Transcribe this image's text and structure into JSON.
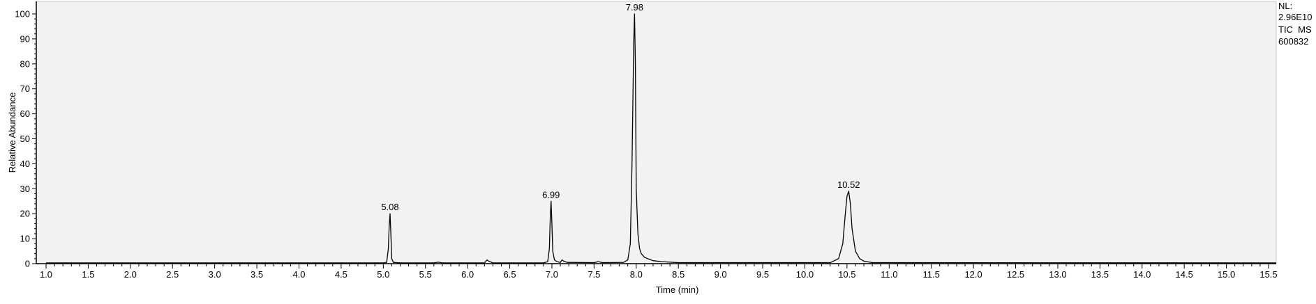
{
  "chart_data": {
    "type": "line",
    "xlabel": "Time (min)",
    "ylabel": "Relative Abundance",
    "xlim": [
      1.0,
      15.6
    ],
    "ylim": [
      0,
      100
    ],
    "x_ticks": [
      "1.0",
      "1.5",
      "2.0",
      "2.5",
      "3.0",
      "3.5",
      "4.0",
      "4.5",
      "5.0",
      "5.5",
      "6.0",
      "6.5",
      "7.0",
      "7.5",
      "8.0",
      "8.5",
      "9.0",
      "9.5",
      "10.0",
      "10.5",
      "11.0",
      "11.5",
      "12.0",
      "12.5",
      "13.0",
      "13.5",
      "14.0",
      "14.5",
      "15.0",
      "15.5"
    ],
    "y_ticks": [
      "0",
      "10",
      "20",
      "30",
      "40",
      "50",
      "60",
      "70",
      "80",
      "90",
      "100"
    ],
    "info": [
      "NL:",
      "2.96E10",
      "TIC  MS",
      "600832"
    ],
    "colors": {
      "plot_background": "#f2f2f2",
      "trace": "#000000",
      "axis": "#000000"
    },
    "peak_labels": [
      {
        "text": "5.08",
        "x": 5.08,
        "y": 20
      },
      {
        "text": "6.99",
        "x": 6.99,
        "y": 25
      },
      {
        "text": "7.98",
        "x": 7.98,
        "y": 100
      },
      {
        "text": "10.52",
        "x": 10.52,
        "y": 29
      }
    ],
    "series": [
      {
        "x": [
          1.0,
          5.0,
          5.04,
          5.06,
          5.07,
          5.08,
          5.09,
          5.1,
          5.12,
          5.2,
          5.6,
          5.65,
          5.7,
          6.2,
          6.23,
          6.25,
          6.28,
          6.3,
          6.9,
          6.95,
          6.97,
          6.98,
          6.99,
          7.0,
          7.01,
          7.03,
          7.06,
          7.1,
          7.12,
          7.14,
          7.18,
          7.5,
          7.55,
          7.6,
          7.85,
          7.9,
          7.93,
          7.95,
          7.97,
          7.98,
          7.99,
          8.0,
          8.02,
          8.04,
          8.06,
          8.1,
          8.15,
          8.2,
          8.3,
          8.5,
          10.3,
          10.4,
          10.45,
          10.48,
          10.5,
          10.52,
          10.54,
          10.56,
          10.6,
          10.65,
          10.7,
          10.8,
          15.6
        ],
        "y": [
          0.3,
          0.3,
          0.5,
          6,
          15,
          20,
          12,
          2,
          0.5,
          0.3,
          0.3,
          0.6,
          0.3,
          0.3,
          1.5,
          1,
          0.6,
          0.3,
          0.3,
          0.8,
          6,
          18,
          25,
          16,
          5,
          1.5,
          0.8,
          0.5,
          1.5,
          1,
          0.5,
          0.4,
          0.8,
          0.4,
          0.5,
          1.5,
          8,
          40,
          88,
          100,
          80,
          30,
          12,
          6,
          4,
          2.5,
          1.8,
          1.2,
          0.8,
          0.4,
          0.4,
          2,
          8,
          20,
          27,
          29,
          24,
          14,
          5,
          2,
          1,
          0.4,
          0.3
        ]
      }
    ]
  }
}
